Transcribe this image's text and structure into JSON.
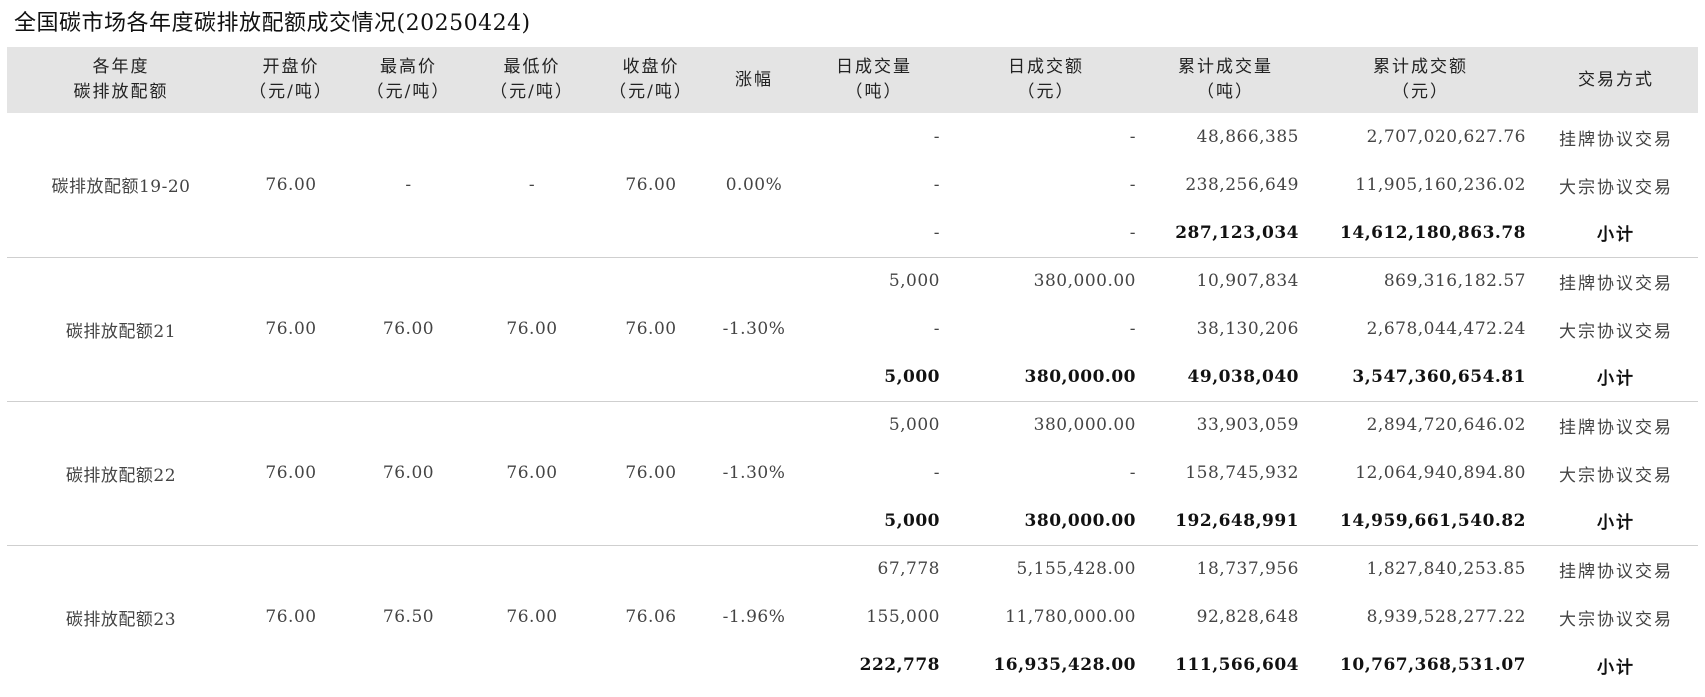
{
  "title": "全国碳市场各年度碳排放配额成交情况(20250424)",
  "headers": {
    "allowance": [
      "各年度",
      "碳排放配额"
    ],
    "open": [
      "开盘价",
      "（元/吨）"
    ],
    "high": [
      "最高价",
      "（元/吨）"
    ],
    "low": [
      "最低价",
      "（元/吨）"
    ],
    "close": [
      "收盘价",
      "（元/吨）"
    ],
    "change": [
      "涨幅"
    ],
    "daily_volume": [
      "日成交量",
      "（吨）"
    ],
    "daily_amount": [
      "日成交额",
      "（元）"
    ],
    "cum_volume": [
      "累计成交量",
      "（吨）"
    ],
    "cum_amount": [
      "累计成交额",
      "（元）"
    ],
    "mode": [
      "交易方式"
    ]
  },
  "groups": [
    {
      "name": "碳排放配额19-20",
      "open": "76.00",
      "high": "-",
      "low": "-",
      "close": "76.00",
      "change": "0.00%",
      "rows": [
        {
          "daily_volume": "-",
          "daily_amount": "-",
          "cum_volume": "48,866,385",
          "cum_amount": "2,707,020,627.76",
          "mode": "挂牌协议交易"
        },
        {
          "daily_volume": "-",
          "daily_amount": "-",
          "cum_volume": "238,256,649",
          "cum_amount": "11,905,160,236.02",
          "mode": "大宗协议交易"
        },
        {
          "daily_volume": "-",
          "daily_amount": "-",
          "cum_volume": "287,123,034",
          "cum_amount": "14,612,180,863.78",
          "mode": "小计"
        }
      ]
    },
    {
      "name": "碳排放配额21",
      "open": "76.00",
      "high": "76.00",
      "low": "76.00",
      "close": "76.00",
      "change": "-1.30%",
      "rows": [
        {
          "daily_volume": "5,000",
          "daily_amount": "380,000.00",
          "cum_volume": "10,907,834",
          "cum_amount": "869,316,182.57",
          "mode": "挂牌协议交易"
        },
        {
          "daily_volume": "-",
          "daily_amount": "-",
          "cum_volume": "38,130,206",
          "cum_amount": "2,678,044,472.24",
          "mode": "大宗协议交易"
        },
        {
          "daily_volume": "5,000",
          "daily_amount": "380,000.00",
          "cum_volume": "49,038,040",
          "cum_amount": "3,547,360,654.81",
          "mode": "小计"
        }
      ]
    },
    {
      "name": "碳排放配额22",
      "open": "76.00",
      "high": "76.00",
      "low": "76.00",
      "close": "76.00",
      "change": "-1.30%",
      "rows": [
        {
          "daily_volume": "5,000",
          "daily_amount": "380,000.00",
          "cum_volume": "33,903,059",
          "cum_amount": "2,894,720,646.02",
          "mode": "挂牌协议交易"
        },
        {
          "daily_volume": "-",
          "daily_amount": "-",
          "cum_volume": "158,745,932",
          "cum_amount": "12,064,940,894.80",
          "mode": "大宗协议交易"
        },
        {
          "daily_volume": "5,000",
          "daily_amount": "380,000.00",
          "cum_volume": "192,648,991",
          "cum_amount": "14,959,661,540.82",
          "mode": "小计"
        }
      ]
    },
    {
      "name": "碳排放配额23",
      "open": "76.00",
      "high": "76.50",
      "low": "76.00",
      "close": "76.06",
      "change": "-1.96%",
      "rows": [
        {
          "daily_volume": "67,778",
          "daily_amount": "5,155,428.00",
          "cum_volume": "18,737,956",
          "cum_amount": "1,827,840,253.85",
          "mode": "挂牌协议交易"
        },
        {
          "daily_volume": "155,000",
          "daily_amount": "11,780,000.00",
          "cum_volume": "92,828,648",
          "cum_amount": "8,939,528,277.22",
          "mode": "大宗协议交易"
        },
        {
          "daily_volume": "222,778",
          "daily_amount": "16,935,428.00",
          "cum_volume": "111,566,604",
          "cum_amount": "10,767,368,531.07",
          "mode": "小计"
        }
      ]
    }
  ]
}
